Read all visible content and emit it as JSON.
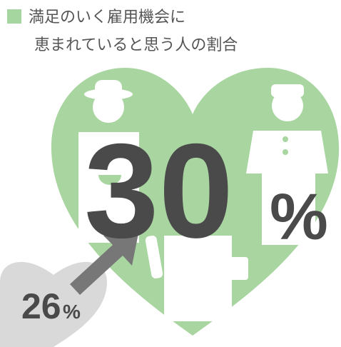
{
  "title": {
    "line1": "満足のいく雇用機会に",
    "line2": "恵まれていると思う人の割合"
  },
  "current": {
    "value": 30,
    "unit": "%"
  },
  "previous": {
    "value": 26,
    "unit": "%"
  }
}
